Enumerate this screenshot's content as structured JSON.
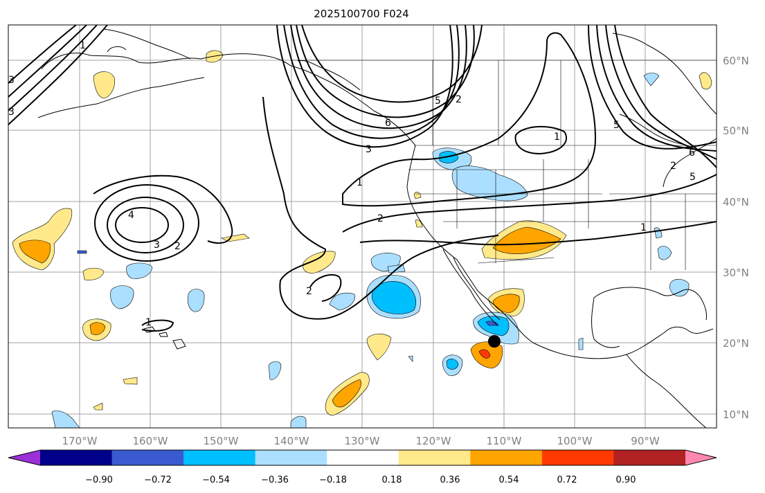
{
  "title": "2025100700 F024",
  "map": {
    "lon_ticks": [
      "170°W",
      "160°W",
      "150°W",
      "140°W",
      "130°W",
      "120°W",
      "110°W",
      "100°W",
      "90°W"
    ],
    "lat_ticks": [
      "60°N",
      "50°N",
      "40°N",
      "30°N",
      "20°N",
      "10°N"
    ],
    "contour_labels": [
      "1",
      "2",
      "3",
      "3",
      "4",
      "2",
      "1",
      "2",
      "1",
      "3",
      "5",
      "2",
      "6",
      "1",
      "1",
      "5",
      "6",
      "5",
      "2",
      "3"
    ],
    "marker": {
      "type": "dot",
      "lon": -111,
      "lat": 20
    },
    "colors": {
      "land_edge": "#000000",
      "grid": "#a0a0a0",
      "contour": "#000000"
    }
  },
  "colorbar": {
    "labels": [
      "−0.90",
      "−0.72",
      "−0.54",
      "−0.36",
      "−0.18",
      "0.18",
      "0.36",
      "0.54",
      "0.72",
      "0.90"
    ],
    "colors": [
      "#9b30d9",
      "#00008b",
      "#3a5bd0",
      "#00bfff",
      "#abdfff",
      "#ffffff",
      "#ffe98a",
      "#ffa500",
      "#ff3a00",
      "#b22222",
      "#ff88b0"
    ]
  }
}
